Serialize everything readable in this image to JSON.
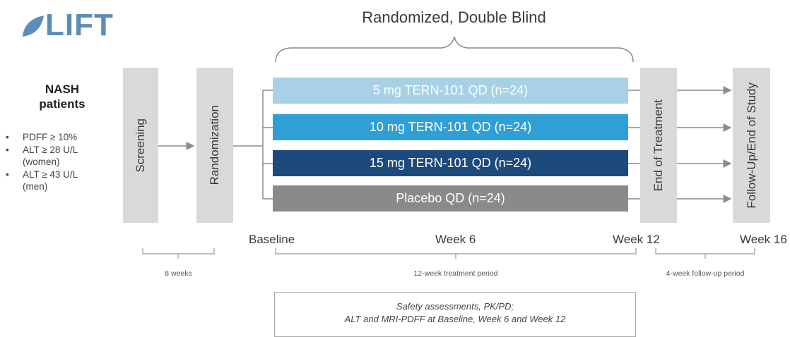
{
  "logo": {
    "text": "LIFT"
  },
  "title": "Randomized, Double Blind",
  "population": {
    "title_line1": "NASH",
    "title_line2": "patients",
    "criteria": [
      {
        "bullet": "•",
        "text": "PDFF ≥ 10%"
      },
      {
        "bullet": "•",
        "text": "ALT ≥ 28 U/L"
      },
      {
        "bullet": "",
        "text": "(women)"
      },
      {
        "bullet": "•",
        "text": "ALT ≥ 43 U/L"
      },
      {
        "bullet": "",
        "text": "(men)"
      }
    ]
  },
  "phases": {
    "screening": "Screening",
    "randomization": "Randomization",
    "end_of_treatment": "End of Treatment",
    "follow_up": "Follow-Up/End of Study"
  },
  "arms": [
    {
      "label": "5 mg TERN-101 QD (n=24)",
      "color": "#a8d1e7"
    },
    {
      "label": "10 mg TERN-101 QD (n=24)",
      "color": "#2f9fd6"
    },
    {
      "label": "15 mg TERN-101 QD (n=24)",
      "color": "#1d4a7c"
    },
    {
      "label": "Placebo QD (n=24)",
      "color": "#8a8a8c"
    }
  ],
  "timepoints": {
    "baseline": "Baseline",
    "week6": "Week 6",
    "week12": "Week 12",
    "week16": "Week 16"
  },
  "periods": {
    "screening": "8 weeks",
    "treatment": "12-week treatment period",
    "follow_up": "4-week follow-up period"
  },
  "assessments": {
    "line1": "Safety assessments, PK/PD;",
    "line2": "ALT and MRI-PDFF at Baseline, Week 6 and Week 12"
  }
}
